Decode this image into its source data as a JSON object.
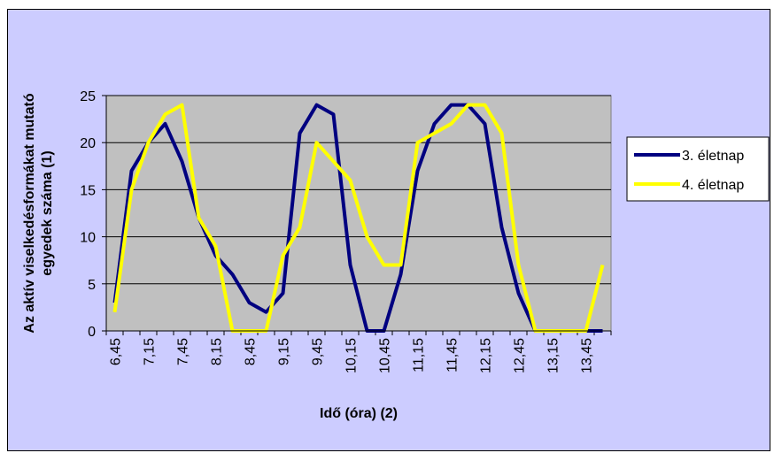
{
  "chart_data": {
    "type": "line",
    "title": "",
    "xlabel": "Idő (óra) (2)",
    "ylabel_line1": "Az aktív viselkedésformákat mutató",
    "ylabel_line2": "egyedek száma (1)",
    "ylim": [
      0,
      25
    ],
    "yticks": [
      "0",
      "5",
      "10",
      "15",
      "20",
      "25"
    ],
    "grid": true,
    "legend_position": "right",
    "x": [
      "6,45",
      "7,00",
      "7,15",
      "7,30",
      "7,45",
      "8,00",
      "8,15",
      "8,30",
      "8,45",
      "9,00",
      "9,15",
      "9,30",
      "9,45",
      "10,00",
      "10,15",
      "10,30",
      "10,45",
      "11,00",
      "11,15",
      "11,30",
      "11,45",
      "12,00",
      "12,15",
      "12,30",
      "12,45",
      "13,00",
      "13,15",
      "13,30",
      "13,45",
      "14,00"
    ],
    "xtick_labels": [
      "6,45",
      "",
      "7,15",
      "",
      "7,45",
      "",
      "8,15",
      "",
      "8,45",
      "",
      "9,15",
      "",
      "9,45",
      "",
      "10,15",
      "",
      "10,45",
      "",
      "11,15",
      "",
      "11,45",
      "",
      "12,15",
      "",
      "12,45",
      "",
      "13,15",
      "",
      "13,45",
      ""
    ],
    "series": [
      {
        "name": "3. életnap",
        "color": "#000080",
        "values": [
          3,
          17,
          20,
          22,
          18,
          12,
          8,
          6,
          3,
          2,
          4,
          21,
          24,
          23,
          7,
          0,
          0,
          6,
          17,
          22,
          24,
          24,
          22,
          11,
          4,
          0,
          0,
          0,
          0,
          0
        ]
      },
      {
        "name": "4. életnap",
        "color": "#ffff00",
        "values": [
          2,
          15,
          20,
          23,
          24,
          12,
          9,
          0,
          0,
          0,
          8,
          11,
          20,
          18,
          16,
          10,
          7,
          7,
          20,
          21,
          22,
          24,
          24,
          21,
          7,
          0,
          0,
          0,
          0,
          7
        ]
      }
    ]
  }
}
